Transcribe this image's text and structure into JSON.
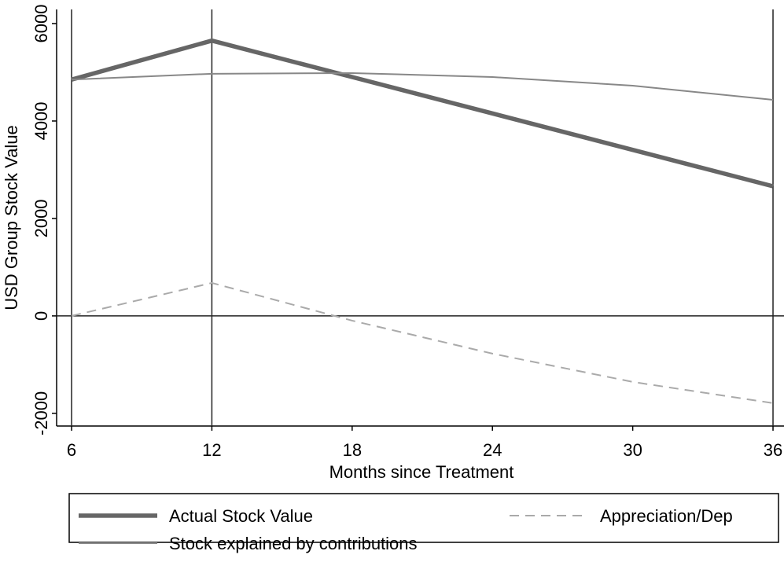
{
  "chart_data": {
    "type": "line",
    "xlabel": "Months since Treatment",
    "ylabel": "USD Group Stock Value",
    "x": [
      6,
      12,
      18,
      24,
      30,
      36
    ],
    "series": [
      {
        "name": "Actual Stock Value",
        "color": "#666666",
        "values": [
          4850,
          5650,
          4902.5,
          4155,
          3407.5,
          2660
        ]
      },
      {
        "name": "Appreciation/Dep",
        "color": "#aaaaaa",
        "values": [
          0,
          677,
          -97,
          -774,
          -1355,
          -1790
        ]
      },
      {
        "name": "Stock explained by contributions",
        "color": "#888888",
        "values": [
          4850,
          4970,
          4984,
          4903,
          4726,
          4435
        ]
      }
    ],
    "xlim": [
      5.36,
      36.47
    ],
    "ylim": [
      -2260,
      6290
    ],
    "xticks": [
      6,
      12,
      18,
      24,
      30,
      36
    ],
    "yticks": [
      -2000,
      0,
      2000,
      4000,
      6000
    ],
    "xlines": [
      6,
      12,
      36
    ],
    "ylines": [
      0
    ]
  }
}
